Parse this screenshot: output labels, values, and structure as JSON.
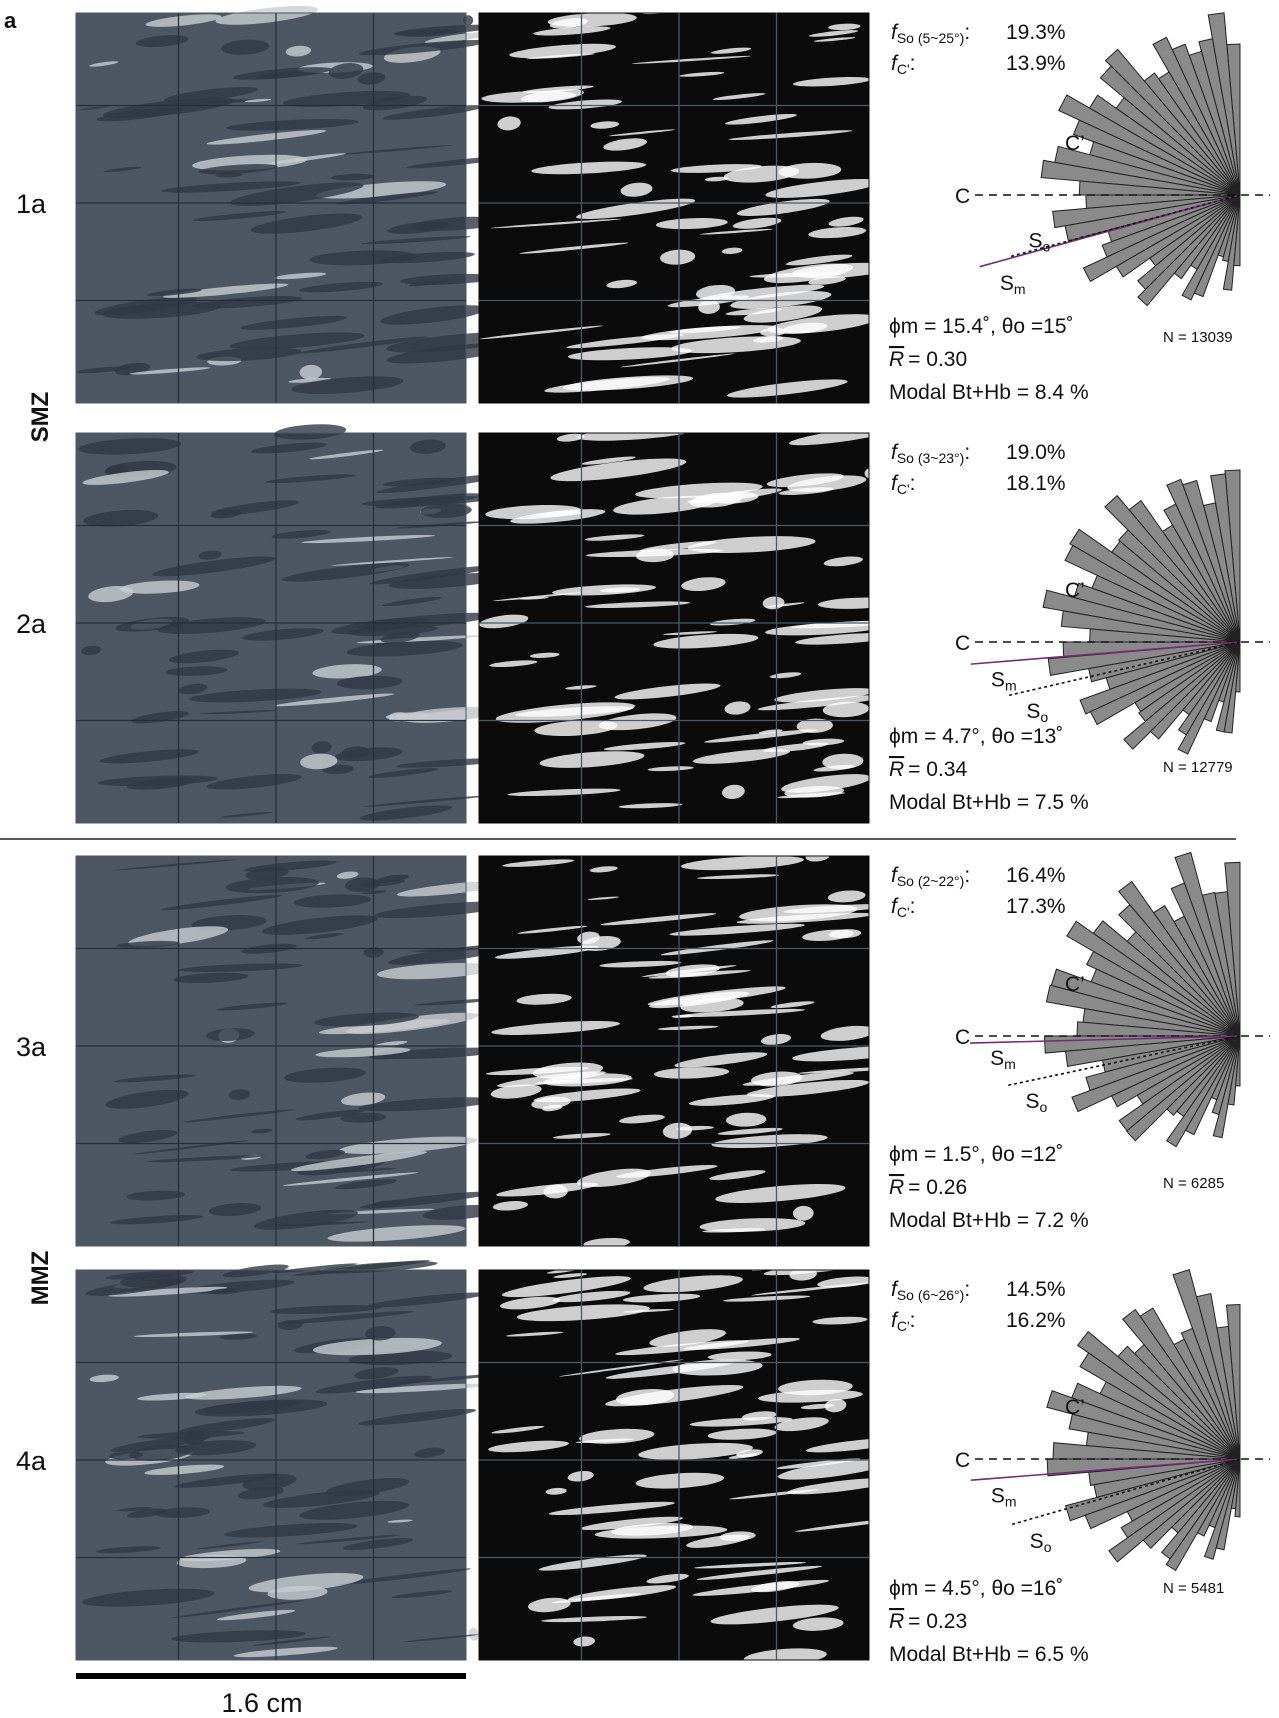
{
  "figure_label": "a",
  "zones": [
    "SMZ",
    "MMZ"
  ],
  "common": {
    "f": "f",
    "c_sub": "C'",
    "c_colon": ":",
    "c": "C",
    "c_prime": "C’",
    "s": "S",
    "o": "o",
    "m": "m",
    "r": "R",
    "scale_bar": "1.6 cm"
  },
  "panels": [
    {
      "label": "1a",
      "so_sub": "So (5~25°)",
      "fso": "19.3%",
      "fc": "13.9%",
      "phi": "ϕm = 15.4˚, θo =15˚",
      "r_value": "= 0.30",
      "modal": "Modal Bt+Hb = 8.4 %",
      "n": "N = 13039"
    },
    {
      "label": "2a",
      "so_sub": "So (3~23°)",
      "fso": "19.0%",
      "fc": "18.1%",
      "phi": "ϕm = 4.7°, θo =13˚",
      "r_value": "= 0.34",
      "modal": "Modal Bt+Hb = 7.5 %",
      "n": "N = 12779"
    },
    {
      "label": "3a",
      "so_sub": "So (2~22°)",
      "fso": "16.4%",
      "fc": "17.3%",
      "phi": "ϕm =  1.5°, θo =12˚",
      "r_value": "= 0.26",
      "modal": "Modal Bt+Hb = 7.2 %",
      "n": "N = 6285"
    },
    {
      "label": "4a",
      "so_sub": "So (6~26°)",
      "fso": "14.5%",
      "fc": "16.2%",
      "phi": "ϕm =  4.5°, θo =16˚",
      "r_value": "= 0.23",
      "modal": "Modal Bt+Hb = 6.5 %",
      "n": "N = 5481"
    }
  ]
}
